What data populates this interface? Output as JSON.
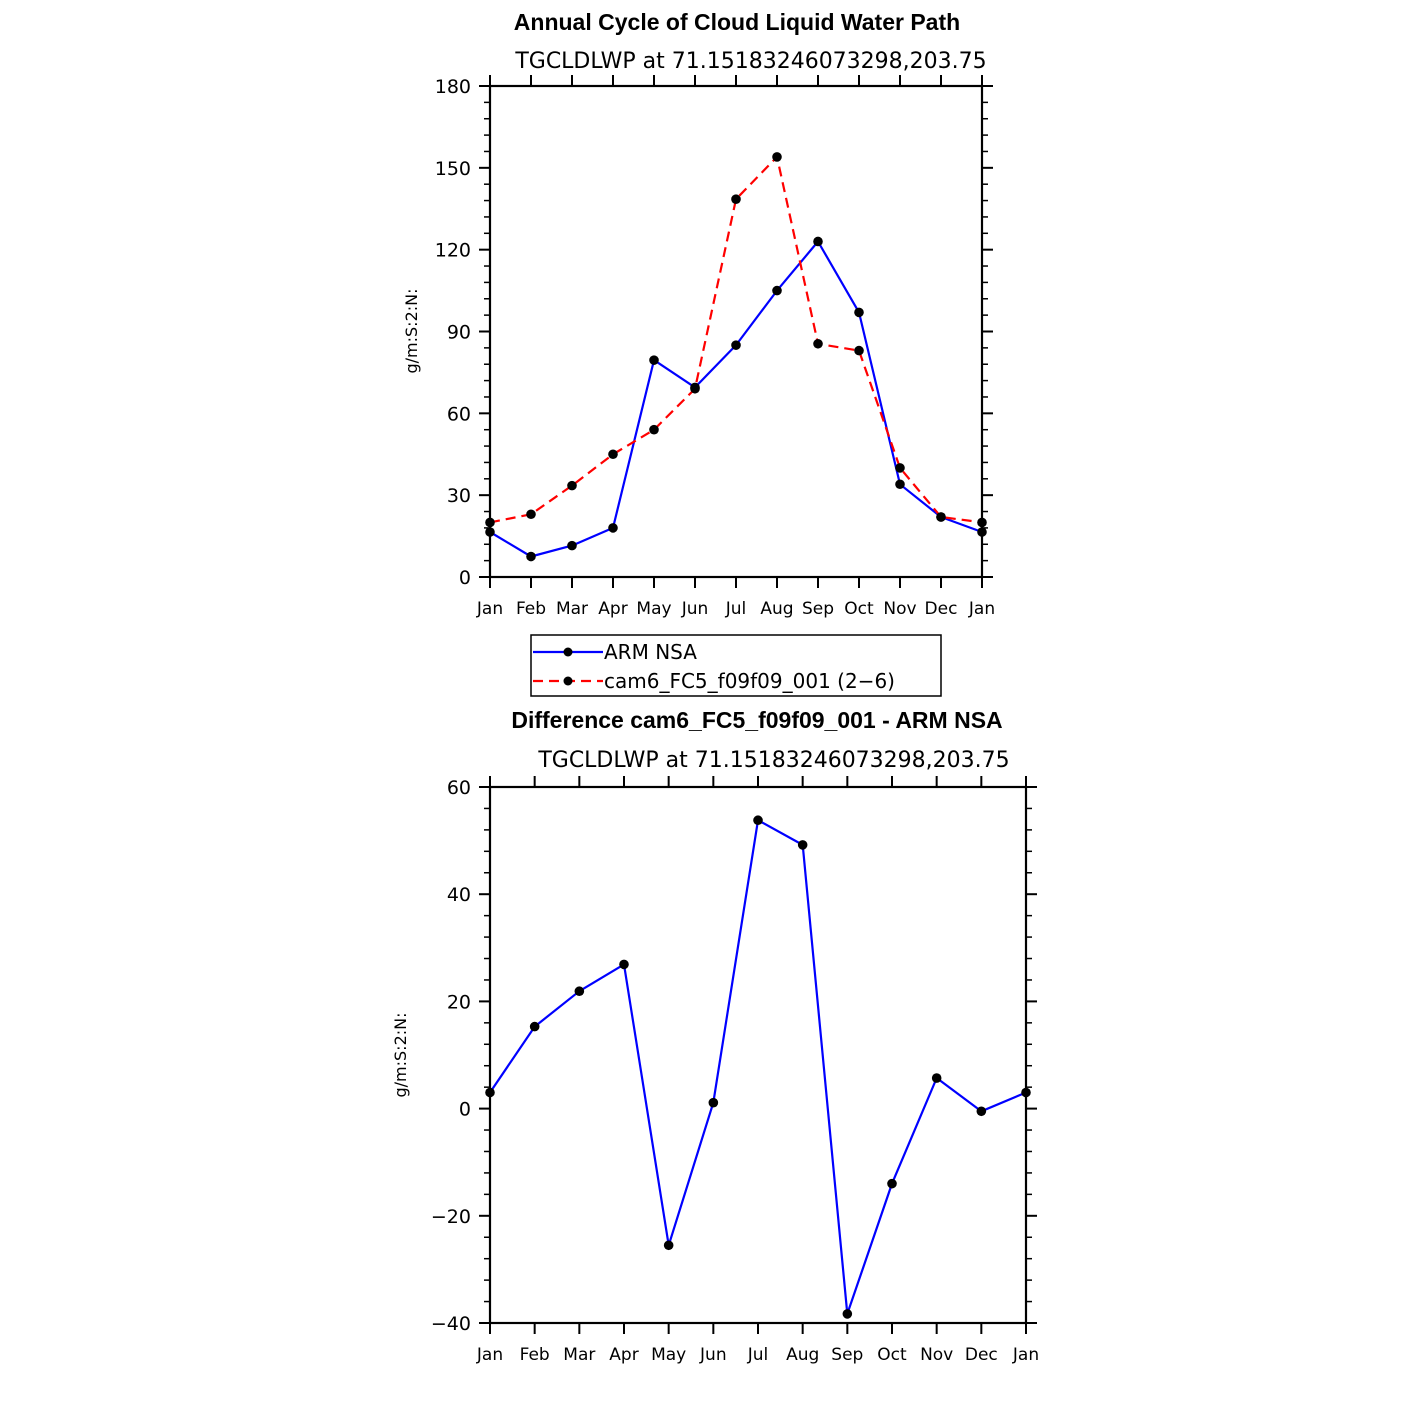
{
  "chart_data": [
    {
      "type": "line",
      "title": "Annual Cycle of Cloud Liquid Water Path",
      "subtitle": "TGCLDLWP at 71.15183246073298,203.75",
      "ylabel": "g/m:S:2:N:",
      "ylim": [
        0,
        180
      ],
      "yticks": [
        0,
        30,
        60,
        90,
        120,
        150,
        180
      ],
      "categories": [
        "Jan",
        "Feb",
        "Mar",
        "Apr",
        "May",
        "Jun",
        "Jul",
        "Aug",
        "Sep",
        "Oct",
        "Nov",
        "Dec",
        "Jan"
      ],
      "series": [
        {
          "name": "ARM NSA",
          "color": "#0000ff",
          "dash": "solid",
          "values": [
            16.5,
            7.5,
            11.5,
            18,
            79.5,
            69.5,
            85,
            105,
            123,
            97,
            34,
            22,
            16.5
          ]
        },
        {
          "name": "cam6_FC5_f09f09_001 (2−6)",
          "color": "#ff0000",
          "dash": "dashed",
          "values": [
            20,
            23,
            33.5,
            45,
            54,
            69,
            138.5,
            154,
            85.5,
            83,
            40,
            22,
            20
          ]
        }
      ],
      "legend_position": "below"
    },
    {
      "type": "line",
      "title": "Difference cam6_FC5_f09f09_001 - ARM NSA",
      "subtitle": "TGCLDLWP at 71.15183246073298,203.75",
      "ylabel": "g/m:S:2:N:",
      "ylim": [
        -40,
        60
      ],
      "yticks": [
        -40,
        -20,
        0,
        20,
        40,
        60
      ],
      "ytick_labels": [
        "−40",
        "−20",
        "0",
        "20",
        "40",
        "60"
      ],
      "categories": [
        "Jan",
        "Feb",
        "Mar",
        "Apr",
        "May",
        "Jun",
        "Jul",
        "Aug",
        "Sep",
        "Oct",
        "Nov",
        "Dec",
        "Jan"
      ],
      "series": [
        {
          "color": "#0000ff",
          "dash": "solid",
          "values": [
            3,
            15.3,
            21.9,
            26.9,
            -25.5,
            1.1,
            53.8,
            49.2,
            -38.3,
            -14,
            5.7,
            -0.5,
            3
          ]
        }
      ]
    }
  ]
}
